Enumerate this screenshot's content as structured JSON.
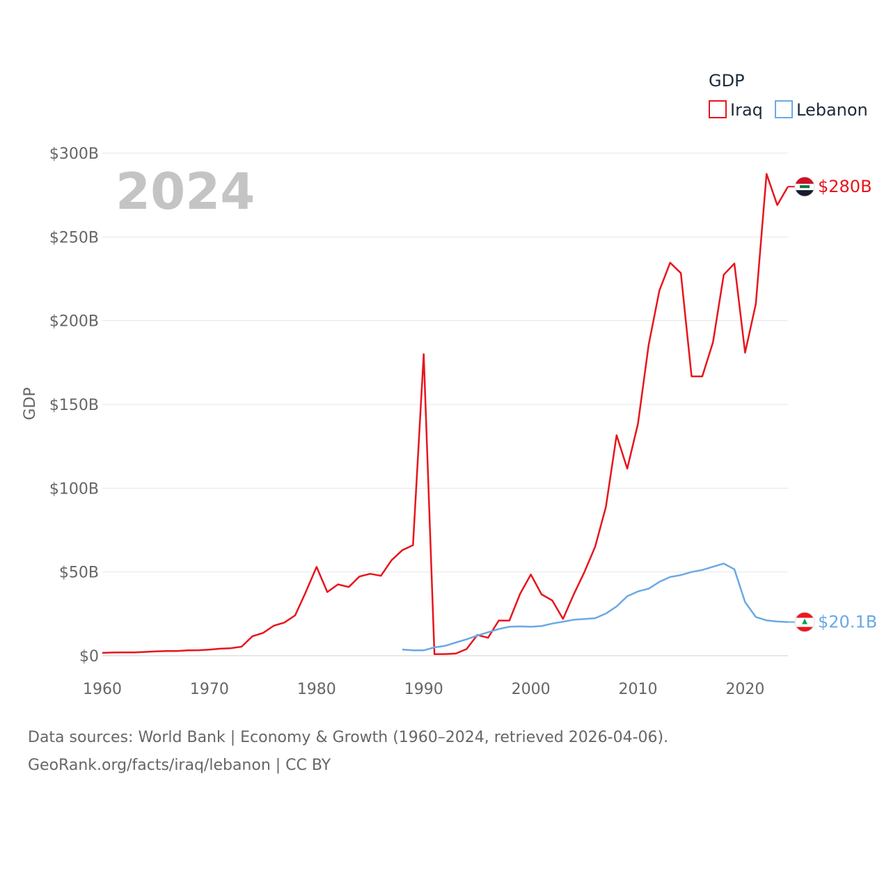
{
  "chart_data": {
    "type": "line",
    "title": "",
    "xlabel": "",
    "ylabel": "GDP",
    "legend_title": "GDP",
    "year_label": "2024",
    "xlim": [
      1960,
      2024
    ],
    "ylim": [
      0,
      300
    ],
    "x_ticks": [
      1960,
      1970,
      1980,
      1990,
      2000,
      2010,
      2020
    ],
    "y_ticks": [
      0,
      50,
      100,
      150,
      200,
      250,
      300
    ],
    "y_tick_labels": [
      "$0",
      "$50B",
      "$100B",
      "$150B",
      "$200B",
      "$250B",
      "$300B"
    ],
    "series": [
      {
        "name": "Iraq",
        "color": "#e8141c",
        "end_label": "$280B",
        "flag": "iraq-flag-icon",
        "x": [
          1960,
          1961,
          1962,
          1963,
          1964,
          1965,
          1966,
          1967,
          1968,
          1969,
          1970,
          1971,
          1972,
          1973,
          1974,
          1975,
          1976,
          1977,
          1978,
          1979,
          1980,
          1981,
          1982,
          1983,
          1984,
          1985,
          1986,
          1987,
          1988,
          1989,
          1990,
          1991,
          1992,
          1993,
          1994,
          1995,
          1996,
          1997,
          1998,
          1999,
          2000,
          2001,
          2002,
          2003,
          2004,
          2005,
          2006,
          2007,
          2008,
          2009,
          2010,
          2011,
          2012,
          2013,
          2014,
          2015,
          2016,
          2017,
          2018,
          2019,
          2020,
          2021,
          2022,
          2023,
          2024
        ],
        "values": [
          1.7,
          1.9,
          2.0,
          2.0,
          2.3,
          2.6,
          2.8,
          2.8,
          3.2,
          3.3,
          3.6,
          4.2,
          4.5,
          5.4,
          11.6,
          13.6,
          17.9,
          19.8,
          24.1,
          38.1,
          53.0,
          38.0,
          42.6,
          41.0,
          47.3,
          48.9,
          47.7,
          57.0,
          63.0,
          66.0,
          180.0,
          0.9,
          1.0,
          1.3,
          4.0,
          12.4,
          10.7,
          21.0,
          21.0,
          37.0,
          48.5,
          36.6,
          33.0,
          22.0,
          36.6,
          50.0,
          65.1,
          88.8,
          131.6,
          111.7,
          138.5,
          185.7,
          218.0,
          234.6,
          228.4,
          166.8,
          166.7,
          187.2,
          227.4,
          234.1,
          180.9,
          210.0,
          287.6,
          269.0,
          280.0
        ]
      },
      {
        "name": "Lebanon",
        "color": "#6aa9e4",
        "end_label": "$20.1B",
        "flag": "lebanon-flag-icon",
        "x": [
          1988,
          1989,
          1990,
          1991,
          1992,
          1993,
          1994,
          1995,
          1996,
          1997,
          1998,
          1999,
          2000,
          2001,
          2002,
          2003,
          2004,
          2005,
          2006,
          2007,
          2008,
          2009,
          2010,
          2011,
          2012,
          2013,
          2014,
          2015,
          2016,
          2017,
          2018,
          2019,
          2020,
          2021,
          2022,
          2023,
          2024
        ],
        "values": [
          3.7,
          3.2,
          3.2,
          5.0,
          5.9,
          7.9,
          9.8,
          12.0,
          14.0,
          15.9,
          17.3,
          17.5,
          17.3,
          17.7,
          19.2,
          20.3,
          21.5,
          21.9,
          22.4,
          25.2,
          29.4,
          35.5,
          38.4,
          40.0,
          44.1,
          47.0,
          48.1,
          50.0,
          51.2,
          53.1,
          55.0,
          51.6,
          32.0,
          23.1,
          21.1,
          20.4,
          20.1
        ]
      }
    ]
  },
  "footer": {
    "line1": "Data sources: World Bank | Economy & Growth (1960–2024, retrieved 2026-04-06).",
    "line2": "GeoRank.org/facts/iraq/lebanon | CC BY"
  }
}
